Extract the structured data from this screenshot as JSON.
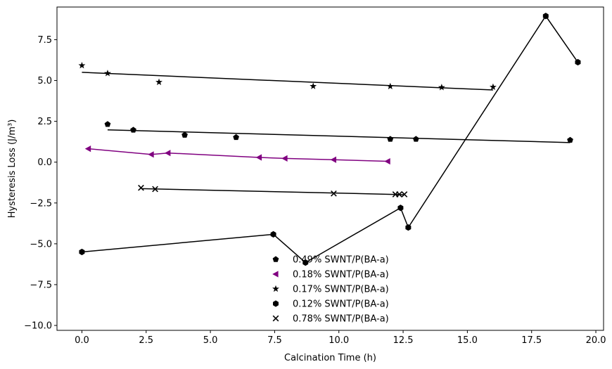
{
  "chart_data": {
    "type": "scatter",
    "title": "",
    "xlabel": "Calcination Time (h)",
    "ylabel": "Hysteresis Loss (J/m³)",
    "xlim": [
      -0.97,
      20.3
    ],
    "ylim": [
      -10.3,
      9.5
    ],
    "xticks": [
      0.0,
      2.5,
      5.0,
      7.5,
      10.0,
      12.5,
      15.0,
      17.5,
      20.0
    ],
    "xtick_labels": [
      "0.0",
      "2.5",
      "5.0",
      "7.5",
      "10.0",
      "12.5",
      "15.0",
      "17.5",
      "20.0"
    ],
    "yticks": [
      -10.0,
      -7.5,
      -5.0,
      -2.5,
      0.0,
      2.5,
      5.0,
      7.5
    ],
    "ytick_labels": [
      "−10.0",
      "−7.5",
      "−5.0",
      "−2.5",
      "0.0",
      "2.5",
      "5.0",
      "7.5"
    ],
    "grid": false,
    "legend_position": "bottom-center",
    "series": [
      {
        "name": "0.49% SWNT/P(BA-a)",
        "marker": "pentagon",
        "color": "#000000",
        "points": [
          [
            1.0,
            2.32
          ],
          [
            2.0,
            1.97
          ],
          [
            4.0,
            1.66
          ],
          [
            6.0,
            1.52
          ],
          [
            12.0,
            1.41
          ],
          [
            13.0,
            1.41
          ],
          [
            19.0,
            1.35
          ]
        ],
        "line": {
          "type": "fit",
          "x": [
            1.0,
            19.0
          ],
          "y": [
            1.98,
            1.2
          ]
        }
      },
      {
        "name": "0.18% SWNT/P(BA-a)",
        "marker": "triangle-left",
        "color": "#800080",
        "points": [
          [
            0.25,
            0.82
          ],
          [
            2.7,
            0.47
          ],
          [
            3.35,
            0.56
          ],
          [
            6.9,
            0.29
          ],
          [
            7.9,
            0.23
          ],
          [
            9.8,
            0.15
          ],
          [
            11.9,
            0.05
          ]
        ],
        "line": {
          "type": "connect",
          "x": [
            0.25,
            2.7,
            3.35,
            6.9,
            7.9,
            9.8,
            11.9
          ],
          "y": [
            0.82,
            0.47,
            0.56,
            0.29,
            0.23,
            0.15,
            0.05
          ]
        }
      },
      {
        "name": "0.17% SWNT/P(BA-a)",
        "marker": "star",
        "color": "#000000",
        "points": [
          [
            0.0,
            5.92
          ],
          [
            1.0,
            5.44
          ],
          [
            3.0,
            4.9
          ],
          [
            9.0,
            4.65
          ],
          [
            12.0,
            4.64
          ],
          [
            14.0,
            4.58
          ],
          [
            16.0,
            4.6
          ]
        ],
        "line": {
          "type": "fit",
          "x": [
            0.0,
            16.0
          ],
          "y": [
            5.5,
            4.42
          ]
        }
      },
      {
        "name": "0.12% SWNT/P(BA-a)",
        "marker": "hexagon",
        "color": "#000000",
        "points": [
          [
            0.0,
            -5.5
          ],
          [
            7.45,
            -4.42
          ],
          [
            8.7,
            -6.15
          ],
          [
            12.4,
            -2.8
          ],
          [
            12.7,
            -4.0
          ],
          [
            18.05,
            8.95
          ],
          [
            19.3,
            6.12
          ]
        ],
        "line": {
          "type": "connect",
          "x": [
            0.0,
            7.45,
            8.7,
            12.4,
            12.7,
            18.05,
            19.3
          ],
          "y": [
            -5.5,
            -4.42,
            -6.15,
            -2.8,
            -4.0,
            8.95,
            6.12
          ]
        }
      },
      {
        "name": "0.78% SWNT/P(BA-a)",
        "marker": "x",
        "color": "#000000",
        "points": [
          [
            2.3,
            -1.57
          ],
          [
            2.85,
            -1.65
          ],
          [
            9.8,
            -1.92
          ],
          [
            12.2,
            -1.97
          ],
          [
            12.35,
            -1.97
          ],
          [
            12.55,
            -1.97
          ]
        ],
        "line": {
          "type": "fit",
          "x": [
            2.3,
            12.55
          ],
          "y": [
            -1.62,
            -1.99
          ]
        }
      }
    ]
  }
}
